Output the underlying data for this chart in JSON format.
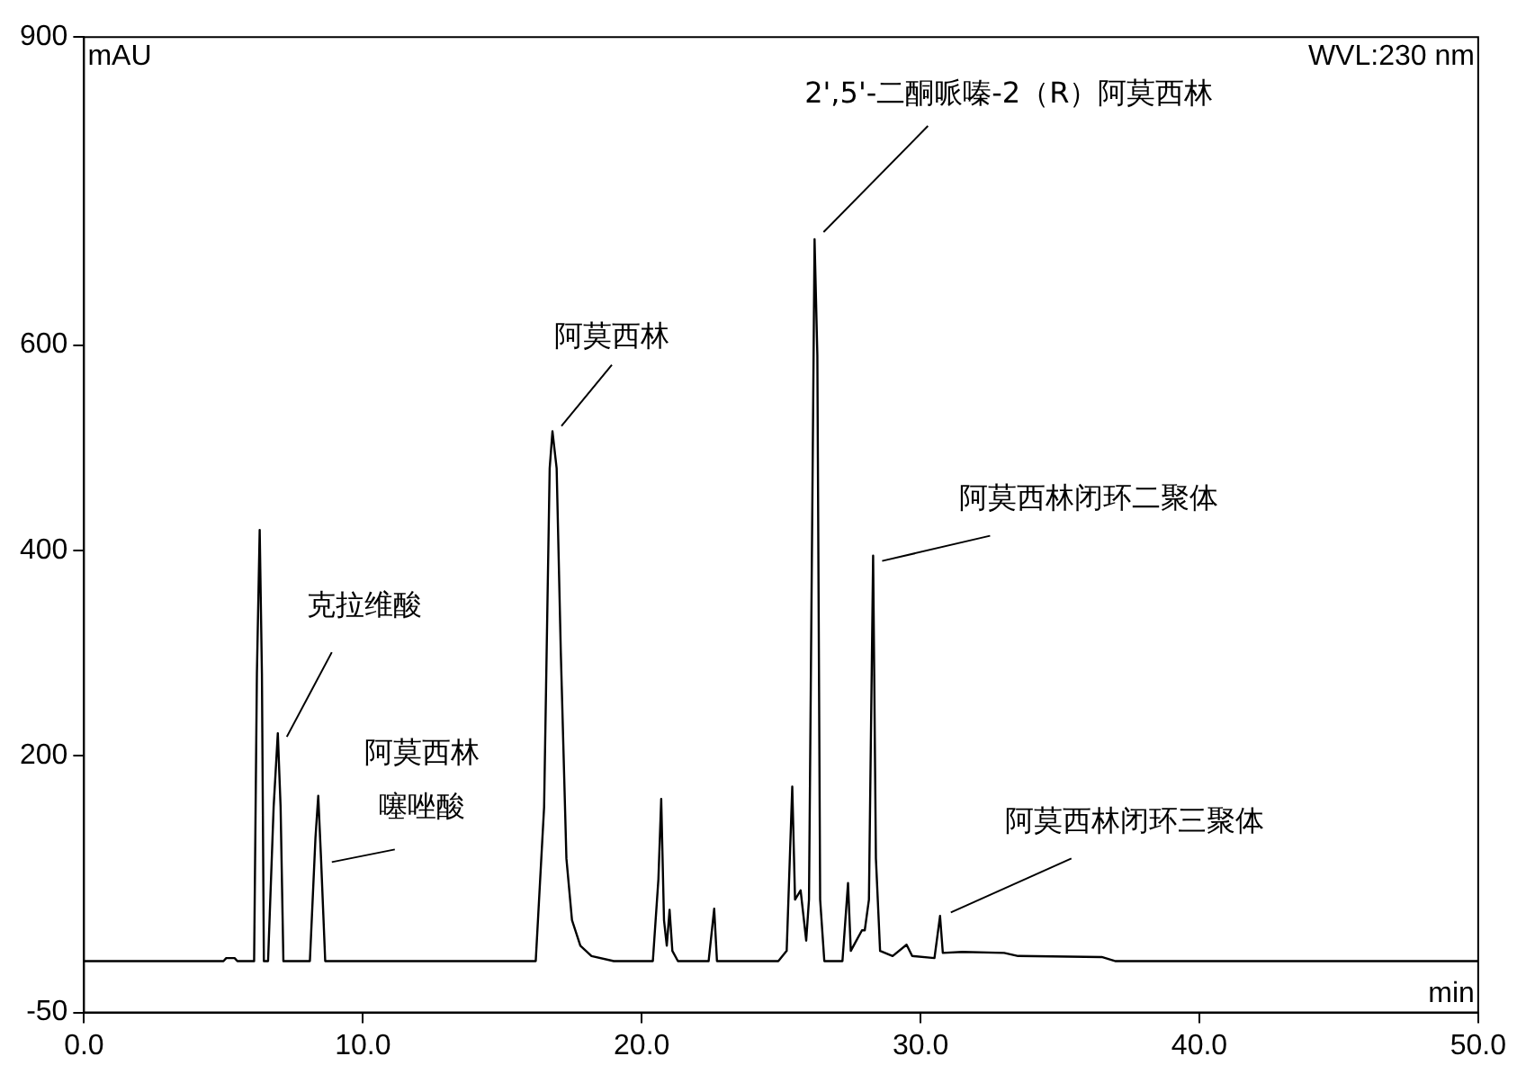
{
  "chart_data": {
    "type": "line",
    "xlabel": "min",
    "ylabel": "mAU",
    "xlim": [
      0,
      50
    ],
    "xticks": [
      {
        "value": 0,
        "label": "0.0"
      },
      {
        "value": 10,
        "label": "10.0"
      },
      {
        "value": 20,
        "label": "20.0"
      },
      {
        "value": 30,
        "label": "30.0"
      },
      {
        "value": 40,
        "label": "40.0"
      },
      {
        "value": 50,
        "label": "50.0"
      }
    ],
    "ylim": [
      -50,
      900
    ],
    "yticks": [
      -50,
      200,
      400,
      600,
      900
    ],
    "grid": false,
    "legend": false,
    "marker": "none",
    "line_style": "solid",
    "series": [
      {
        "color": "#000000",
        "x": [
          0,
          5.0,
          5.1,
          5.4,
          5.5,
          6.1,
          6.2,
          6.3,
          6.38,
          6.45,
          6.6,
          6.8,
          6.95,
          7.05,
          7.15,
          8.1,
          8.3,
          8.4,
          8.5,
          8.65,
          16.2,
          16.5,
          16.7,
          16.8,
          16.95,
          17.1,
          17.3,
          17.5,
          17.8,
          18.2,
          19,
          20.4,
          20.6,
          20.7,
          20.8,
          20.9,
          21.0,
          21.1,
          21.3,
          22.4,
          22.6,
          22.7,
          24.9,
          25.2,
          25.4,
          25.5,
          25.7,
          25.9,
          26.0,
          26.2,
          26.3,
          26.4,
          26.55,
          27.2,
          27.4,
          27.5,
          27.7,
          27.9,
          28.0,
          28.15,
          28.3,
          28.4,
          28.55,
          29.0,
          29.5,
          29.7,
          30.5,
          30.7,
          30.8,
          31.5,
          33,
          33.5,
          36.5,
          37,
          50
        ],
        "values": [
          0,
          0,
          3,
          3,
          0,
          0,
          280,
          420,
          280,
          0,
          0,
          150,
          222,
          150,
          0,
          0,
          120,
          161,
          100,
          0,
          0,
          150,
          480,
          516,
          480,
          300,
          100,
          40,
          15,
          5,
          0,
          0,
          80,
          158,
          40,
          15,
          50,
          10,
          0,
          0,
          51,
          0,
          0,
          10,
          170,
          60,
          69,
          20,
          60,
          703,
          590,
          60,
          0,
          0,
          76,
          10,
          20,
          30,
          30,
          60,
          395,
          100,
          10,
          5,
          16,
          5,
          3,
          44,
          8,
          9,
          8,
          5,
          4,
          0,
          0
        ]
      }
    ],
    "annotations": [
      "WVL:230 nm",
      {
        "text": "克拉维酸",
        "x": 6.95,
        "y": 222
      },
      {
        "text": "阿莫西林噻唑酸",
        "x": 8.5,
        "y": 100
      },
      {
        "text": "阿莫西林",
        "x": 16.8,
        "y": 516
      },
      {
        "text": "2',5'-二酮哌嗪-2（R）阿莫西林",
        "x": 26.2,
        "y": 703
      },
      {
        "text": "阿莫西林闭环二聚体",
        "x": 28.3,
        "y": 395
      },
      {
        "text": "阿莫西林闭环三聚体",
        "x": 30.7,
        "y": 44
      }
    ]
  }
}
